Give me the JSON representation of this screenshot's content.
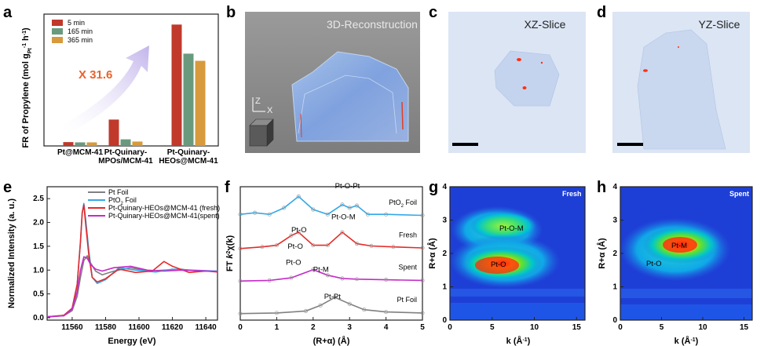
{
  "panels": {
    "a": {
      "label": "a"
    },
    "b": {
      "label": "b",
      "title": "3D-Reconstruction",
      "axis_z": "Z",
      "axis_x": "X"
    },
    "c": {
      "label": "c",
      "title": "XZ-Slice"
    },
    "d": {
      "label": "d",
      "title": "YZ-Slice"
    },
    "e": {
      "label": "e"
    },
    "f": {
      "label": "f"
    },
    "g": {
      "label": "g"
    },
    "h": {
      "label": "h"
    }
  },
  "colors": {
    "c5": "#c0392b",
    "c165": "#6a9a7d",
    "c365": "#d79a3c",
    "ptfoil": "#808080",
    "pto2": "#33a8e8",
    "fresh": "#e52a2a",
    "spent": "#c42bc8",
    "slice_bg": "#dbe5f4",
    "recon_bg": "#8a8a8a",
    "contour_bg": "#1e3fd6"
  },
  "chart_data": [
    {
      "id": "a",
      "type": "bar",
      "categories": [
        "Pt@MCM-41",
        "Pt-Quinary-MPOs/MCM-41",
        "Pt-Quinary-HEOs@MCM-41"
      ],
      "category_lines": [
        [
          "Pt@MCM-41"
        ],
        [
          "Pt-Quinary-",
          "MPOs/MCM-41"
        ],
        [
          "Pt-Quinary-",
          "HEOs@MCM-41"
        ]
      ],
      "series": [
        {
          "name": "5 min",
          "values": [
            1.4,
            9.6,
            44.2
          ]
        },
        {
          "name": "165 min",
          "values": [
            1.3,
            2.4,
            33.6
          ]
        },
        {
          "name": "365 min",
          "values": [
            1.3,
            1.6,
            31.0
          ]
        }
      ],
      "ylabel": "FR of Propylene (mol g",
      "ylabel_sub": "Pt",
      "ylabel_sup": "-1",
      "ylabel_tail": " h",
      "ylabel_sup2": "-1",
      "ylabel_end": ")",
      "annotation": "X 31.6",
      "ylim": [
        0,
        48
      ]
    },
    {
      "id": "e",
      "type": "line",
      "xlabel": "Energy (eV)",
      "ylabel": "Normalized Intensity (a. u.)",
      "xlim": [
        11545,
        11647
      ],
      "ylim": [
        -0.05,
        2.75
      ],
      "xticks": [
        11560,
        11580,
        11600,
        11620,
        11640
      ],
      "yticks": [
        0.0,
        0.5,
        1.0,
        1.5,
        2.0,
        2.5
      ],
      "ytick_labels": [
        "0.0",
        "0.5",
        "1.0",
        "1.5",
        "2.0",
        "2.5"
      ],
      "legend": [
        "Pt Foil",
        "PtO2 Foil",
        "Pt-Quinary-HEOs@MCM-41 (fresh)",
        "Pt-Quinary-HEOs@MCM-41(spent)"
      ],
      "legend_base": "PtO",
      "legend_sub": "2",
      "legend_tail": " Foil",
      "series": [
        {
          "name": "Pt Foil",
          "x": [
            11545,
            11555,
            11560,
            11563,
            11565,
            11567,
            11569,
            11571,
            11574,
            11578,
            11585,
            11595,
            11605,
            11615,
            11625,
            11635,
            11647
          ],
          "y": [
            0.02,
            0.04,
            0.15,
            0.45,
            0.85,
            1.2,
            1.3,
            1.15,
            0.98,
            0.9,
            0.98,
            1.05,
            0.98,
            1.0,
            1.02,
            0.98,
            0.98
          ]
        },
        {
          "name": "PtO2 Foil",
          "x": [
            11545,
            11555,
            11560,
            11563,
            11565,
            11566,
            11567,
            11568,
            11570,
            11572,
            11575,
            11580,
            11588,
            11598,
            11610,
            11620,
            11632,
            11647
          ],
          "y": [
            0.02,
            0.05,
            0.2,
            0.7,
            1.6,
            2.2,
            2.4,
            2.1,
            1.4,
            0.85,
            0.72,
            0.8,
            1.05,
            1.0,
            0.96,
            1.02,
            1.0,
            0.98
          ]
        },
        {
          "name": "Pt-Quinary-HEOs@MCM-41 (fresh)",
          "x": [
            11545,
            11555,
            11560,
            11563,
            11565,
            11566,
            11567,
            11568,
            11570,
            11572,
            11575,
            11580,
            11588,
            11598,
            11608,
            11615,
            11620,
            11630,
            11640,
            11647
          ],
          "y": [
            0.02,
            0.05,
            0.2,
            0.7,
            1.6,
            2.2,
            2.37,
            2.0,
            1.3,
            0.85,
            0.75,
            0.82,
            1.02,
            0.95,
            0.98,
            1.18,
            1.08,
            0.95,
            0.98,
            0.96
          ]
        },
        {
          "name": "Pt-Quinary-HEOs@MCM-41(spent)",
          "x": [
            11545,
            11555,
            11560,
            11563,
            11565,
            11567,
            11569,
            11571,
            11574,
            11578,
            11585,
            11595,
            11605,
            11615,
            11625,
            11635,
            11647
          ],
          "y": [
            0.02,
            0.04,
            0.18,
            0.55,
            1.0,
            1.28,
            1.25,
            1.12,
            1.02,
            0.98,
            1.05,
            1.08,
            1.0,
            0.98,
            1.0,
            0.99,
            0.97
          ]
        }
      ]
    },
    {
      "id": "f",
      "type": "line",
      "xlabel": "(R+α) (Å)",
      "ylabel_pre": "FT ",
      "ylabel_k": "k",
      "ylabel_sup": "2",
      "ylabel_chi": "χ(k)",
      "xlim": [
        0,
        5
      ],
      "xticks": [
        0,
        1,
        2,
        3,
        4,
        5
      ],
      "traces": [
        {
          "name": "PtO2 Foil",
          "label_base": "PtO",
          "label_sub": "2",
          "label_tail": " Foil",
          "offset": 3.1
        },
        {
          "name": "Fresh",
          "label": "Fresh",
          "offset": 2.1
        },
        {
          "name": "Spent",
          "label": "Spent",
          "offset": 1.1
        },
        {
          "name": "Pt Foil",
          "label": "Pt Foil",
          "offset": 0.1
        }
      ],
      "annotations": [
        "Pt-O",
        "Pt-O-Pt",
        "Pt-O",
        "Pt-O-M",
        "Pt-O",
        "Pt-M",
        "Pt-Pt"
      ]
    },
    {
      "id": "g",
      "type": "heatmap",
      "tag": "Fresh",
      "xlabel": "k (Å",
      "xlabel_sup": "-1",
      "xlabel_end": ")",
      "ylabel": "R+α (Å)",
      "xlim": [
        0,
        16
      ],
      "ylim": [
        0,
        4
      ],
      "xticks": [
        0,
        5,
        10,
        15
      ],
      "yticks": [
        0,
        1,
        2,
        3,
        4
      ],
      "annotations": [
        "Pt-O-M",
        "Pt-O"
      ]
    },
    {
      "id": "h",
      "type": "heatmap",
      "tag": "Spent",
      "xlabel": "k (Å",
      "xlabel_sup": "-1",
      "xlabel_end": ")",
      "ylabel": "R+α (Å)",
      "xlim": [
        0,
        16
      ],
      "ylim": [
        0,
        4
      ],
      "xticks": [
        0,
        5,
        10,
        15
      ],
      "yticks": [
        0,
        1,
        2,
        3,
        4
      ],
      "annotations": [
        "Pt-M",
        "Pt-O"
      ]
    }
  ]
}
